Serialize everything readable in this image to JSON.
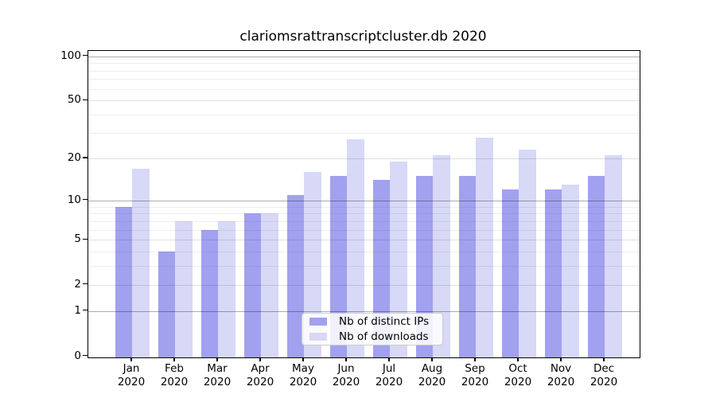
{
  "chart_data": {
    "type": "bar",
    "title": "clariomsrattranscriptcluster.db 2020",
    "months": [
      "Jan",
      "Feb",
      "Mar",
      "Apr",
      "May",
      "Jun",
      "Jul",
      "Aug",
      "Sep",
      "Oct",
      "Nov",
      "Dec"
    ],
    "year": "2020",
    "series": [
      {
        "name": "Nb of distinct IPs",
        "color": "#a1a1f0",
        "values": [
          9,
          4,
          6,
          8,
          11,
          15,
          14,
          15,
          15,
          12,
          12,
          15
        ]
      },
      {
        "name": "Nb of downloads",
        "color": "#d8d8f7",
        "values": [
          17,
          7,
          7,
          8,
          16,
          27,
          19,
          21,
          28,
          23,
          13,
          21
        ]
      }
    ],
    "ylabel": "",
    "xlabel": "",
    "y_axis": {
      "scale": "log(v+1)",
      "tick_values": [
        0,
        1,
        2,
        5,
        10,
        20,
        50,
        100
      ],
      "decade_gridlines": [
        1,
        10,
        100
      ],
      "labeled_gridlines": [
        2,
        5,
        20,
        50
      ],
      "minor_gridlines": [
        3,
        4,
        6,
        7,
        8,
        9,
        30,
        40,
        60,
        70,
        80,
        90
      ],
      "max": 100
    },
    "grid": true,
    "legend_position": "lower-center"
  }
}
